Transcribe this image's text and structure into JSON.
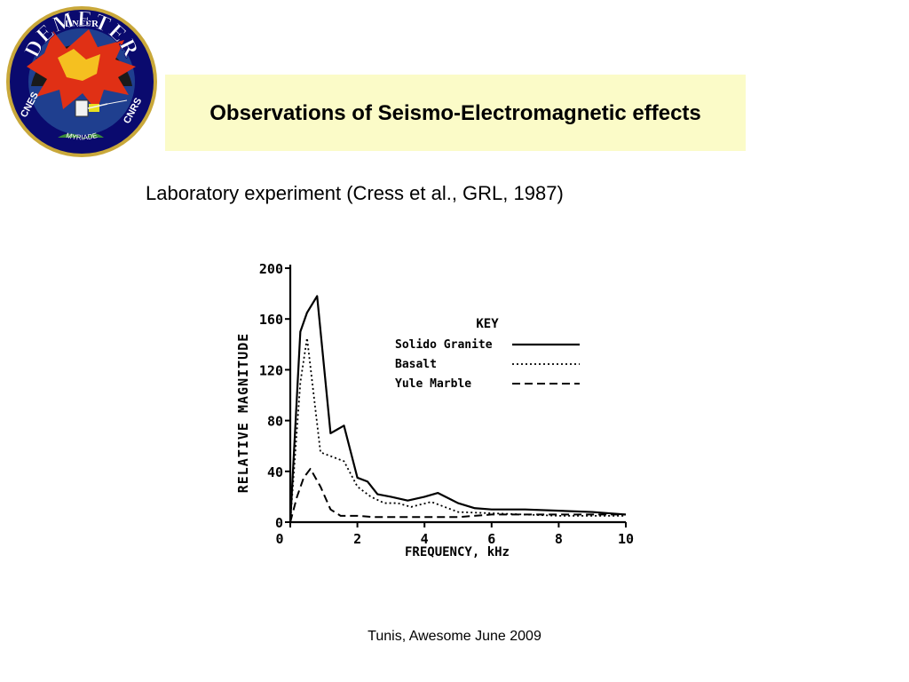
{
  "slide": {
    "title": "Observations of Seismo-Electromagnetic effects",
    "subtitle": "Laboratory experiment (Cress et al., GRL, 1987)",
    "footer": "Tunis, Awesome June 2009"
  },
  "logo": {
    "top_text": "DNEPR",
    "name": "DEMETER",
    "left_text": "CNES",
    "right_text": "CNRS",
    "bottom_text": "MYRIADE"
  },
  "colors": {
    "title_bg": "#fbfbc8",
    "logo_ring": "#0a0a6e",
    "logo_sky": "#1f3f8f",
    "logo_burst": "#e03015",
    "logo_name": "#ffffff"
  },
  "chart_data": {
    "type": "line",
    "title": "",
    "xlabel": "FREQUENCY, kHz",
    "ylabel": "RELATIVE MAGNITUDE",
    "xlim": [
      0,
      10
    ],
    "ylim": [
      0,
      200
    ],
    "xticks": [
      0,
      2,
      4,
      6,
      8,
      10
    ],
    "yticks": [
      0,
      40,
      80,
      120,
      160,
      200
    ],
    "grid": false,
    "legend_title": "KEY",
    "legend_position": "top-right",
    "series": [
      {
        "name": "Solido Granite",
        "style": "solid",
        "x": [
          0,
          0.3,
          0.5,
          0.8,
          1.2,
          1.6,
          2.0,
          2.3,
          2.6,
          3.0,
          3.5,
          4.0,
          4.4,
          5.0,
          5.5,
          6.0,
          7.0,
          8.0,
          9.0,
          10.0
        ],
        "y": [
          0,
          150,
          165,
          178,
          70,
          76,
          35,
          32,
          22,
          20,
          17,
          20,
          23,
          15,
          11,
          10,
          10,
          9,
          8,
          6
        ]
      },
      {
        "name": "Basalt",
        "style": "dotted",
        "x": [
          0,
          0.3,
          0.5,
          0.7,
          0.9,
          1.2,
          1.6,
          2.0,
          2.4,
          2.8,
          3.2,
          3.6,
          4.2,
          5.0,
          6.0,
          7.0,
          8.0,
          9.0,
          10.0
        ],
        "y": [
          0,
          110,
          145,
          100,
          55,
          52,
          48,
          28,
          20,
          15,
          15,
          12,
          16,
          8,
          7,
          6,
          5,
          5,
          5
        ]
      },
      {
        "name": "Yule Marble",
        "style": "dashed",
        "x": [
          0,
          0.2,
          0.4,
          0.6,
          0.9,
          1.2,
          1.5,
          2.0,
          2.5,
          3.0,
          4.0,
          5.0,
          6.0,
          7.0,
          8.0,
          9.0,
          10.0
        ],
        "y": [
          0,
          20,
          35,
          42,
          28,
          10,
          5,
          5,
          4,
          4,
          4,
          4,
          6,
          6,
          6,
          6,
          6
        ]
      }
    ]
  }
}
